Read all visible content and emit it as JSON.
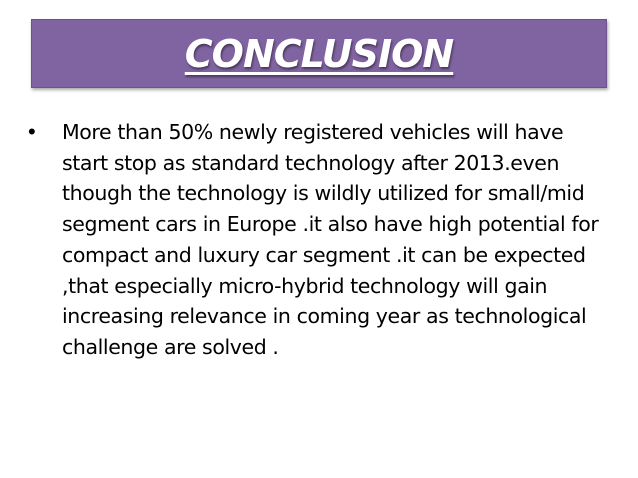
{
  "slide": {
    "title": "CONCLUSION",
    "title_bg_color": "#8063a1",
    "bullets": [
      {
        "icon": "bullet-dot",
        "text": "More than 50% newly registered vehicles will have start stop as standard technology after 2013.even though the technology is wildly utilized for small/mid segment cars in Europe .it also have high potential for compact and luxury car segment .it can be expected ,that especially micro-hybrid technology will gain increasing relevance  in coming year as technological challenge are solved ."
      }
    ]
  }
}
